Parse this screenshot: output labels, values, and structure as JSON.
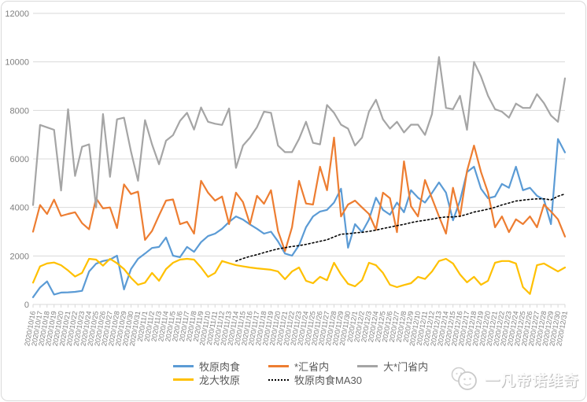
{
  "chart_data": {
    "type": "line",
    "title": "",
    "xlabel": "",
    "ylabel": "",
    "ylim": [
      0,
      12000
    ],
    "yticks": [
      0,
      2000,
      4000,
      6000,
      8000,
      10000,
      12000
    ],
    "grid": "horizontal",
    "legend_position": "bottom",
    "x": [
      "2020/10/16",
      "2020/10/17",
      "2020/10/18",
      "2020/10/19",
      "2020/10/20",
      "2020/10/21",
      "2020/10/22",
      "2020/10/23",
      "2020/10/24",
      "2020/10/25",
      "2020/10/26",
      "2020/10/27",
      "2020/10/28",
      "2020/10/29",
      "2020/10/30",
      "2020/10/31",
      "2020/11/1",
      "2020/11/2",
      "2020/11/3",
      "2020/11/4",
      "2020/11/5",
      "2020/11/6",
      "2020/11/7",
      "2020/11/8",
      "2020/11/9",
      "2020/11/10",
      "2020/11/11",
      "2020/11/12",
      "2020/11/13",
      "2020/11/14",
      "2020/11/15",
      "2020/11/16",
      "2020/11/17",
      "2020/11/18",
      "2020/11/19",
      "2020/11/20",
      "2020/11/21",
      "2020/11/22",
      "2020/11/23",
      "2020/11/24",
      "2020/11/25",
      "2020/11/26",
      "2020/11/27",
      "2020/11/28",
      "2020/11/29",
      "2020/11/30",
      "2020/12/1",
      "2020/12/2",
      "2020/12/3",
      "2020/12/4",
      "2020/12/5",
      "2020/12/6",
      "2020/12/7",
      "2020/12/8",
      "2020/12/9",
      "2020/12/10",
      "2020/12/11",
      "2020/12/12",
      "2020/12/13",
      "2020/12/14",
      "2020/12/15",
      "2020/12/16",
      "2020/12/17",
      "2020/12/18",
      "2020/12/19",
      "2020/12/20",
      "2020/12/21",
      "2020/12/22",
      "2020/12/23",
      "2020/12/24",
      "2020/12/25",
      "2020/12/26",
      "2020/12/27",
      "2020/12/28",
      "2020/12/29",
      "2020/12/30",
      "2020/12/31"
    ],
    "series": [
      {
        "name": "牧原肉食",
        "color": "#5B9BD5",
        "style": "solid",
        "values": [
          300,
          700,
          950,
          410,
          490,
          500,
          520,
          560,
          1360,
          1680,
          1790,
          1850,
          2010,
          620,
          1460,
          1880,
          2100,
          2330,
          2370,
          2760,
          2010,
          1950,
          2370,
          2170,
          2570,
          2820,
          2920,
          3120,
          3400,
          3630,
          3500,
          3300,
          3120,
          2920,
          3000,
          2600,
          2100,
          2010,
          2440,
          3180,
          3630,
          3830,
          3900,
          4200,
          4770,
          2340,
          3310,
          2980,
          3500,
          4400,
          3900,
          3700,
          4200,
          3800,
          4710,
          4400,
          4200,
          4600,
          5030,
          4610,
          3470,
          4280,
          5460,
          5680,
          4770,
          4380,
          4450,
          4970,
          4810,
          5680,
          4710,
          4810,
          4480,
          4320,
          3310,
          6820,
          6270
        ]
      },
      {
        "name": "*汇省内",
        "color": "#ED7D31",
        "style": "solid",
        "values": [
          3000,
          4100,
          3730,
          4320,
          3650,
          3730,
          3800,
          3350,
          3100,
          4380,
          3960,
          4000,
          3150,
          4950,
          4550,
          4650,
          2660,
          3030,
          3670,
          4280,
          4330,
          3310,
          3410,
          2920,
          5100,
          4610,
          4280,
          4450,
          3310,
          4610,
          4220,
          3310,
          4480,
          4150,
          4710,
          3030,
          2200,
          3180,
          5100,
          4160,
          4120,
          5680,
          4710,
          6880,
          3630,
          4120,
          4280,
          4000,
          3730,
          3080,
          4610,
          4380,
          2980,
          5900,
          4050,
          3630,
          5130,
          4380,
          3630,
          2920,
          4810,
          3630,
          5500,
          6550,
          5460,
          4610,
          3180,
          3630,
          2980,
          3510,
          3310,
          3630,
          3180,
          4120,
          3830,
          3510,
          2800
        ]
      },
      {
        "name": "大*门省内",
        "color": "#A5A5A5",
        "style": "solid",
        "values": [
          4100,
          7400,
          7300,
          7200,
          4700,
          8050,
          5300,
          6500,
          6600,
          4000,
          7850,
          5260,
          7630,
          7700,
          6300,
          5100,
          7600,
          6600,
          5780,
          6750,
          6980,
          7570,
          7900,
          7210,
          8120,
          7530,
          7450,
          7400,
          8080,
          5630,
          6550,
          6880,
          7310,
          7950,
          7900,
          6550,
          6280,
          6280,
          6820,
          7530,
          6660,
          6600,
          8220,
          7900,
          7410,
          7250,
          6550,
          6880,
          7950,
          8440,
          7630,
          7250,
          7530,
          7090,
          7410,
          7410,
          6990,
          7850,
          10200,
          8100,
          8050,
          8600,
          7200,
          10000,
          9400,
          8600,
          8050,
          7950,
          7700,
          8280,
          8100,
          8100,
          8670,
          8300,
          7790,
          7530,
          9320
        ]
      },
      {
        "name": "龙大牧原",
        "color": "#FFC000",
        "style": "solid",
        "values": [
          900,
          1570,
          1690,
          1730,
          1620,
          1400,
          1150,
          1300,
          1880,
          1850,
          1600,
          1880,
          1700,
          1460,
          1100,
          810,
          900,
          1300,
          975,
          1460,
          1720,
          1850,
          1880,
          1850,
          1525,
          1140,
          1300,
          1790,
          1700,
          1620,
          1570,
          1525,
          1490,
          1460,
          1430,
          1360,
          1040,
          1360,
          1525,
          975,
          875,
          1140,
          1000,
          1720,
          1235,
          850,
          750,
          1000,
          1720,
          1620,
          1300,
          810,
          715,
          800,
          875,
          1140,
          1050,
          1360,
          1790,
          1880,
          1690,
          1235,
          910,
          1140,
          810,
          975,
          1720,
          1790,
          1790,
          1690,
          715,
          430,
          1620,
          1690,
          1525,
          1360,
          1525
        ]
      },
      {
        "name": "牧原肉食MA30",
        "color": "#000000",
        "style": "dotted",
        "values": [
          null,
          null,
          null,
          null,
          null,
          null,
          null,
          null,
          null,
          null,
          null,
          null,
          null,
          null,
          null,
          null,
          null,
          null,
          null,
          null,
          null,
          null,
          null,
          null,
          null,
          null,
          null,
          null,
          null,
          1787,
          1893,
          1980,
          2052,
          2136,
          2220,
          2290,
          2342,
          2391,
          2427,
          2477,
          2538,
          2604,
          2667,
          2786,
          2897,
          2912,
          2952,
          2974,
          3012,
          3066,
          3129,
          3188,
          3249,
          3303,
          3374,
          3427,
          3470,
          3519,
          3573,
          3606,
          3605,
          3638,
          3716,
          3808,
          3867,
          3926,
          4004,
          4103,
          4182,
          4265,
          4301,
          4334,
          4353,
          4357,
          4309,
          4458,
          4557
        ]
      }
    ],
    "axis_colors": {
      "gridline": "#d9d9d9",
      "tick_label": "#7f7f7f"
    }
  },
  "watermark": {
    "text": "一凡帝诺维奇",
    "icon": "two-faces-logo"
  }
}
